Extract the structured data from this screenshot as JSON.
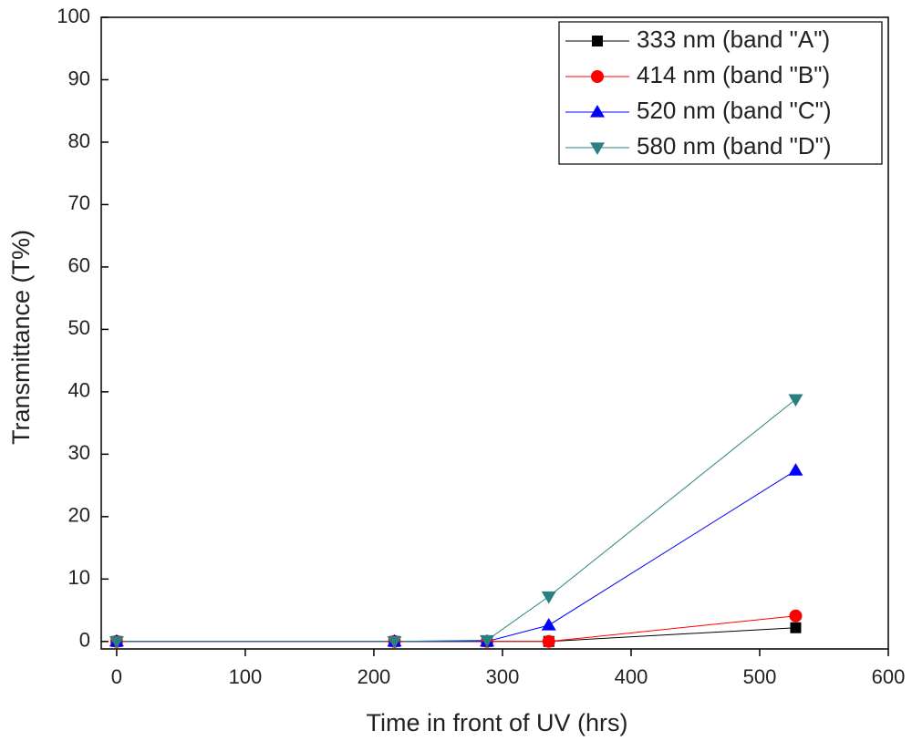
{
  "chart_data": {
    "type": "line",
    "xlabel": "Time in front of UV (hrs)",
    "ylabel": "Transmittance (T%)",
    "x": [
      0,
      216,
      288,
      336,
      528
    ],
    "series": [
      {
        "name": "333 nm (band \"A\")",
        "color": "#000000",
        "marker": "square",
        "values": [
          0,
          0,
          0,
          0,
          2.2
        ]
      },
      {
        "name": "414 nm (band \"B\")",
        "color": "#ff0000",
        "marker": "circle",
        "values": [
          0,
          0,
          0,
          0,
          4.1
        ]
      },
      {
        "name": "520 nm (band \"C\")",
        "color": "#0000ff",
        "marker": "triangle-up",
        "values": [
          0,
          0,
          0,
          2.6,
          27.4
        ]
      },
      {
        "name": "580 nm (band \"D\")",
        "color": "#2a8080",
        "marker": "triangle-down",
        "values": [
          0,
          0,
          0.2,
          7.2,
          38.8
        ]
      }
    ],
    "xlim": [
      -12,
      600
    ],
    "xticks": [
      0,
      100,
      200,
      300,
      400,
      500,
      600
    ],
    "ylim": [
      -1.2,
      100
    ],
    "yticks": [
      0,
      10,
      20,
      30,
      40,
      50,
      60,
      70,
      80,
      90,
      100
    ],
    "legend": "upper right"
  }
}
